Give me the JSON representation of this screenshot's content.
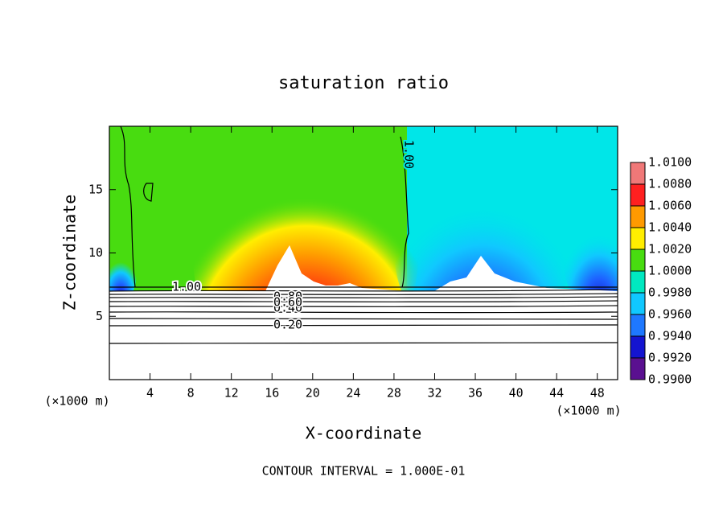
{
  "chart_data": {
    "type": "contour",
    "title": "saturation ratio",
    "xlabel": "X-coordinate",
    "ylabel": "Z-coordinate",
    "x_unit": "(×1000 m)",
    "y_unit": "(×1000 m)",
    "footnote": "CONTOUR INTERVAL = 1.000E-01",
    "xlim": [
      0,
      50
    ],
    "ylim": [
      0,
      20
    ],
    "xticks": [
      4,
      8,
      12,
      16,
      20,
      24,
      28,
      32,
      36,
      40,
      44,
      48
    ],
    "yticks": [
      5,
      10,
      15
    ],
    "contour_labels": [
      "1.00",
      "1.00",
      "0.80",
      "0.60",
      "0.40",
      "0.20"
    ],
    "colorbar": {
      "levels": [
        {
          "value": 0.99,
          "label": "0.9900"
        },
        {
          "value": 0.992,
          "label": "0.9920"
        },
        {
          "value": 0.994,
          "label": "0.9940"
        },
        {
          "value": 0.996,
          "label": "0.9960"
        },
        {
          "value": 0.998,
          "label": "0.9980"
        },
        {
          "value": 1.0,
          "label": "1.0000"
        },
        {
          "value": 1.002,
          "label": "1.0020"
        },
        {
          "value": 1.004,
          "label": "1.0040"
        },
        {
          "value": 1.006,
          "label": "1.0060"
        },
        {
          "value": 1.008,
          "label": "1.0080"
        },
        {
          "value": 1.01,
          "label": "1.0100"
        }
      ],
      "colors": [
        "#5a1090",
        "#1414d0",
        "#1e78ff",
        "#10c8ff",
        "#00e8c0",
        "#48dc10",
        "#ffee00",
        "#ff9a00",
        "#ff2020",
        "#f07878"
      ]
    }
  }
}
